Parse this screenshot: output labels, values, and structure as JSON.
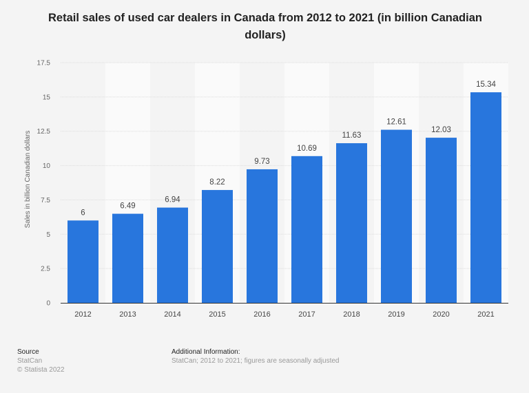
{
  "chart_data": {
    "type": "bar",
    "title": "Retail sales of used car dealers in Canada from 2012 to 2021 (in billion Canadian dollars)",
    "xlabel": "",
    "ylabel": "Sales in billion Canadian dollars",
    "categories": [
      "2012",
      "2013",
      "2014",
      "2015",
      "2016",
      "2017",
      "2018",
      "2019",
      "2020",
      "2021"
    ],
    "values": [
      6,
      6.49,
      6.94,
      8.22,
      9.73,
      10.69,
      11.63,
      12.61,
      12.03,
      15.34
    ],
    "data_labels": [
      "6",
      "6.49",
      "6.94",
      "8.22",
      "9.73",
      "10.69",
      "11.63",
      "12.61",
      "12.03",
      "15.34"
    ],
    "ylim": [
      0,
      17.5
    ],
    "yticks": [
      "0",
      "2.5",
      "5",
      "7.5",
      "10",
      "12.5",
      "15",
      "17.5"
    ],
    "grid": true,
    "bar_color": "#2876dd"
  },
  "footer": {
    "source_label": "Source",
    "source_value": "StatCan",
    "copyright": "© Statista 2022",
    "additional_label": "Additional Information:",
    "additional_value": "StatCan; 2012 to 2021; figures are seasonally adjusted"
  }
}
